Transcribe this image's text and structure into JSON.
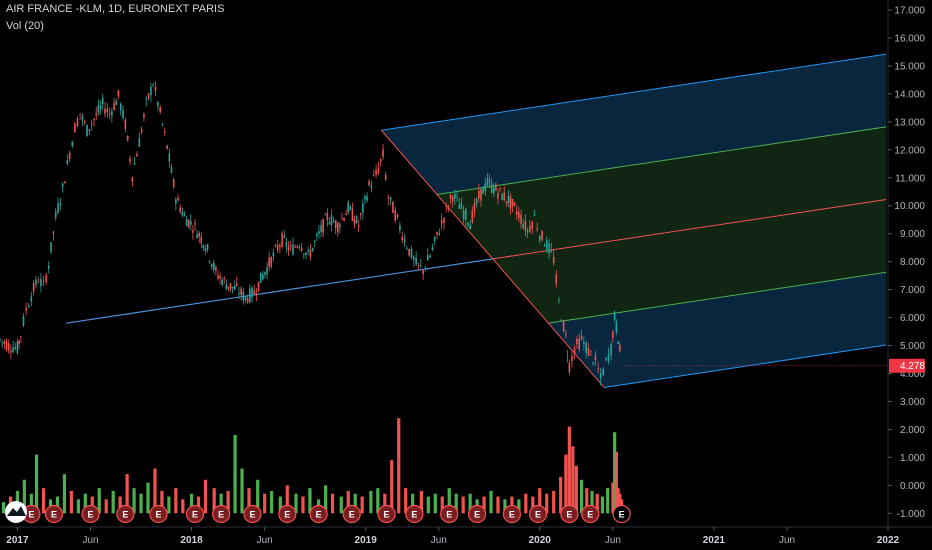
{
  "header": {
    "title": "AIR FRANCE -KLM, 1D, EURONEXT PARIS",
    "volume_label": "Vol (20)"
  },
  "colors": {
    "background": "#000000",
    "up": "#26a69a",
    "down": "#ef5350",
    "vol_up": "#4caf50",
    "vol_down": "#f05350",
    "pitchfork_blue": "#2196f3",
    "pitchfork_green": "#4caf50",
    "median": "#f05350",
    "price_label": "#f23645"
  },
  "last_price": {
    "value": 4.278,
    "label": "4.278"
  },
  "chart_data": {
    "type": "candlestick",
    "title": "AIR FRANCE -KLM, 1D, EURONEXT PARIS",
    "price_axis": {
      "ticks": [
        "17.000",
        "16.000",
        "15.000",
        "14.000",
        "13.000",
        "12.000",
        "11.000",
        "10.000",
        "9.000",
        "8.000",
        "7.000",
        "6.000",
        "5.000",
        "4.000",
        "3.000",
        "2.000",
        "1.000",
        "0.000",
        "-1.000"
      ],
      "ylim": [
        -1,
        17
      ]
    },
    "time_axis": {
      "ticks": [
        {
          "label": "2017",
          "t": 2017.0,
          "bold": true
        },
        {
          "label": "Jun",
          "t": 2017.42,
          "bold": false
        },
        {
          "label": "2018",
          "t": 2018.0,
          "bold": true
        },
        {
          "label": "Jun",
          "t": 2018.42,
          "bold": false
        },
        {
          "label": "2019",
          "t": 2019.0,
          "bold": true
        },
        {
          "label": "Jun",
          "t": 2019.42,
          "bold": false
        },
        {
          "label": "2020",
          "t": 2020.0,
          "bold": true
        },
        {
          "label": "Jun",
          "t": 2020.42,
          "bold": false
        },
        {
          "label": "2021",
          "t": 2021.0,
          "bold": true
        },
        {
          "label": "Jun",
          "t": 2021.42,
          "bold": false
        },
        {
          "label": "2022",
          "t": 2022.0,
          "bold": true
        }
      ],
      "xlim": [
        2016.9,
        2022.0
      ]
    },
    "price_path": [
      [
        2016.9,
        5.2
      ],
      [
        2016.95,
        5.0
      ],
      [
        2017.0,
        4.9
      ],
      [
        2017.02,
        5.4
      ],
      [
        2017.05,
        6.3
      ],
      [
        2017.08,
        6.8
      ],
      [
        2017.12,
        7.4
      ],
      [
        2017.15,
        7.1
      ],
      [
        2017.18,
        7.9
      ],
      [
        2017.22,
        9.6
      ],
      [
        2017.26,
        10.6
      ],
      [
        2017.3,
        11.9
      ],
      [
        2017.33,
        12.8
      ],
      [
        2017.36,
        13.3
      ],
      [
        2017.4,
        12.7
      ],
      [
        2017.44,
        13.1
      ],
      [
        2017.49,
        13.6
      ],
      [
        2017.53,
        13.3
      ],
      [
        2017.58,
        13.9
      ],
      [
        2017.62,
        12.9
      ],
      [
        2017.66,
        11.1
      ],
      [
        2017.7,
        12.3
      ],
      [
        2017.74,
        13.6
      ],
      [
        2017.78,
        14.4
      ],
      [
        2017.82,
        13.3
      ],
      [
        2017.86,
        12.1
      ],
      [
        2017.91,
        10.3
      ],
      [
        2017.96,
        9.6
      ],
      [
        2018.02,
        9.2
      ],
      [
        2018.08,
        8.6
      ],
      [
        2018.14,
        7.6
      ],
      [
        2018.2,
        7.2
      ],
      [
        2018.26,
        7.0
      ],
      [
        2018.31,
        6.7
      ],
      [
        2018.36,
        6.9
      ],
      [
        2018.41,
        7.5
      ],
      [
        2018.47,
        8.2
      ],
      [
        2018.52,
        8.8
      ],
      [
        2018.57,
        8.4
      ],
      [
        2018.62,
        8.7
      ],
      [
        2018.67,
        8.2
      ],
      [
        2018.72,
        8.8
      ],
      [
        2018.78,
        9.6
      ],
      [
        2018.84,
        9.3
      ],
      [
        2018.9,
        9.9
      ],
      [
        2018.96,
        9.3
      ],
      [
        2019.02,
        10.7
      ],
      [
        2019.06,
        11.1
      ],
      [
        2019.1,
        11.8
      ],
      [
        2019.13,
        10.3
      ],
      [
        2019.17,
        9.7
      ],
      [
        2019.21,
        9.0
      ],
      [
        2019.25,
        8.4
      ],
      [
        2019.29,
        7.9
      ],
      [
        2019.33,
        7.7
      ],
      [
        2019.37,
        8.2
      ],
      [
        2019.41,
        8.9
      ],
      [
        2019.45,
        9.6
      ],
      [
        2019.5,
        10.4
      ],
      [
        2019.55,
        9.9
      ],
      [
        2019.6,
        9.4
      ],
      [
        2019.65,
        10.3
      ],
      [
        2019.7,
        10.8
      ],
      [
        2019.76,
        10.5
      ],
      [
        2019.82,
        10.2
      ],
      [
        2019.88,
        9.7
      ],
      [
        2019.93,
        9.1
      ],
      [
        2019.97,
        9.6
      ],
      [
        2020.0,
        9.0
      ],
      [
        2020.04,
        8.6
      ],
      [
        2020.08,
        8.1
      ],
      [
        2020.11,
        6.5
      ],
      [
        2020.15,
        5.3
      ],
      [
        2020.17,
        4.3
      ],
      [
        2020.2,
        4.9
      ],
      [
        2020.24,
        5.2
      ],
      [
        2020.28,
        4.8
      ],
      [
        2020.32,
        4.4
      ],
      [
        2020.35,
        3.8
      ],
      [
        2020.38,
        4.4
      ],
      [
        2020.41,
        4.9
      ],
      [
        2020.43,
        6.0
      ],
      [
        2020.45,
        5.3
      ],
      [
        2020.47,
        4.278
      ]
    ],
    "volume": {
      "ylim": [
        -1,
        4
      ],
      "bars": [
        [
          2016.92,
          0.4,
          1
        ],
        [
          2016.96,
          0.6,
          0
        ],
        [
          2017.0,
          0.8,
          1
        ],
        [
          2017.04,
          1.2,
          1
        ],
        [
          2017.08,
          0.7,
          1
        ],
        [
          2017.11,
          2.1,
          1
        ],
        [
          2017.15,
          0.9,
          0
        ],
        [
          2017.19,
          0.5,
          1
        ],
        [
          2017.23,
          0.6,
          1
        ],
        [
          2017.27,
          1.4,
          1
        ],
        [
          2017.31,
          0.8,
          0
        ],
        [
          2017.35,
          0.5,
          1
        ],
        [
          2017.39,
          0.7,
          1
        ],
        [
          2017.43,
          0.6,
          0
        ],
        [
          2017.47,
          0.9,
          1
        ],
        [
          2017.51,
          0.5,
          0
        ],
        [
          2017.55,
          0.8,
          1
        ],
        [
          2017.59,
          0.6,
          0
        ],
        [
          2017.63,
          1.4,
          0
        ],
        [
          2017.67,
          0.9,
          1
        ],
        [
          2017.71,
          0.7,
          1
        ],
        [
          2017.75,
          1.1,
          1
        ],
        [
          2017.79,
          1.6,
          0
        ],
        [
          2017.83,
          0.8,
          0
        ],
        [
          2017.87,
          0.6,
          1
        ],
        [
          2017.91,
          0.9,
          0
        ],
        [
          2017.95,
          0.5,
          0
        ],
        [
          2018.0,
          0.7,
          1
        ],
        [
          2018.04,
          0.6,
          0
        ],
        [
          2018.08,
          1.2,
          0
        ],
        [
          2018.13,
          0.9,
          0
        ],
        [
          2018.17,
          0.7,
          1
        ],
        [
          2018.21,
          0.8,
          0
        ],
        [
          2018.25,
          2.8,
          1
        ],
        [
          2018.29,
          1.6,
          1
        ],
        [
          2018.33,
          0.9,
          0
        ],
        [
          2018.38,
          1.2,
          1
        ],
        [
          2018.42,
          0.7,
          0
        ],
        [
          2018.46,
          0.8,
          1
        ],
        [
          2018.51,
          0.6,
          1
        ],
        [
          2018.55,
          1.0,
          0
        ],
        [
          2018.6,
          0.7,
          1
        ],
        [
          2018.64,
          0.6,
          0
        ],
        [
          2018.68,
          0.9,
          1
        ],
        [
          2018.73,
          0.5,
          1
        ],
        [
          2018.77,
          1.0,
          1
        ],
        [
          2018.81,
          0.7,
          0
        ],
        [
          2018.86,
          0.6,
          1
        ],
        [
          2018.9,
          0.8,
          0
        ],
        [
          2018.94,
          0.7,
          1
        ],
        [
          2018.98,
          0.6,
          0
        ],
        [
          2019.03,
          0.8,
          1
        ],
        [
          2019.07,
          0.9,
          1
        ],
        [
          2019.11,
          0.7,
          0
        ],
        [
          2019.15,
          1.9,
          0
        ],
        [
          2019.19,
          3.4,
          0
        ],
        [
          2019.23,
          0.9,
          0
        ],
        [
          2019.27,
          0.7,
          1
        ],
        [
          2019.32,
          0.8,
          0
        ],
        [
          2019.36,
          0.6,
          1
        ],
        [
          2019.4,
          0.7,
          1
        ],
        [
          2019.44,
          0.6,
          0
        ],
        [
          2019.48,
          0.9,
          1
        ],
        [
          2019.52,
          0.7,
          1
        ],
        [
          2019.56,
          0.6,
          0
        ],
        [
          2019.6,
          0.7,
          1
        ],
        [
          2019.64,
          0.5,
          1
        ],
        [
          2019.68,
          0.6,
          0
        ],
        [
          2019.72,
          0.8,
          1
        ],
        [
          2019.76,
          0.6,
          0
        ],
        [
          2019.8,
          0.5,
          1
        ],
        [
          2019.84,
          0.6,
          0
        ],
        [
          2019.88,
          0.5,
          1
        ],
        [
          2019.92,
          0.7,
          0
        ],
        [
          2019.96,
          0.6,
          0
        ],
        [
          2020.0,
          0.9,
          0
        ],
        [
          2020.04,
          0.7,
          0
        ],
        [
          2020.08,
          0.8,
          0
        ],
        [
          2020.12,
          1.3,
          0
        ],
        [
          2020.15,
          2.1,
          0
        ],
        [
          2020.17,
          3.1,
          0
        ],
        [
          2020.19,
          2.4,
          0
        ],
        [
          2020.21,
          1.7,
          0
        ],
        [
          2020.24,
          1.2,
          1
        ],
        [
          2020.27,
          0.9,
          0
        ],
        [
          2020.3,
          0.8,
          1
        ],
        [
          2020.33,
          0.7,
          0
        ],
        [
          2020.36,
          0.6,
          1
        ],
        [
          2020.39,
          0.9,
          1
        ],
        [
          2020.42,
          1.1,
          0
        ],
        [
          2020.43,
          2.9,
          1
        ],
        [
          2020.44,
          2.2,
          0
        ],
        [
          2020.45,
          0.9,
          0
        ],
        [
          2020.46,
          0.7,
          0
        ],
        [
          2020.47,
          0.5,
          0
        ]
      ]
    },
    "earnings": [
      2017.08,
      2017.21,
      2017.42,
      2017.62,
      2017.81,
      2018.02,
      2018.17,
      2018.35,
      2018.55,
      2018.73,
      2018.92,
      2019.12,
      2019.28,
      2019.48,
      2019.64,
      2019.84,
      2019.99,
      2020.17,
      2020.29,
      2020.47
    ],
    "pitchfork": {
      "p0": [
        2017.28,
        5.8
      ],
      "p1": [
        2019.09,
        12.7
      ],
      "p2": [
        2020.37,
        3.5
      ],
      "end_t": 2021.99
    }
  }
}
